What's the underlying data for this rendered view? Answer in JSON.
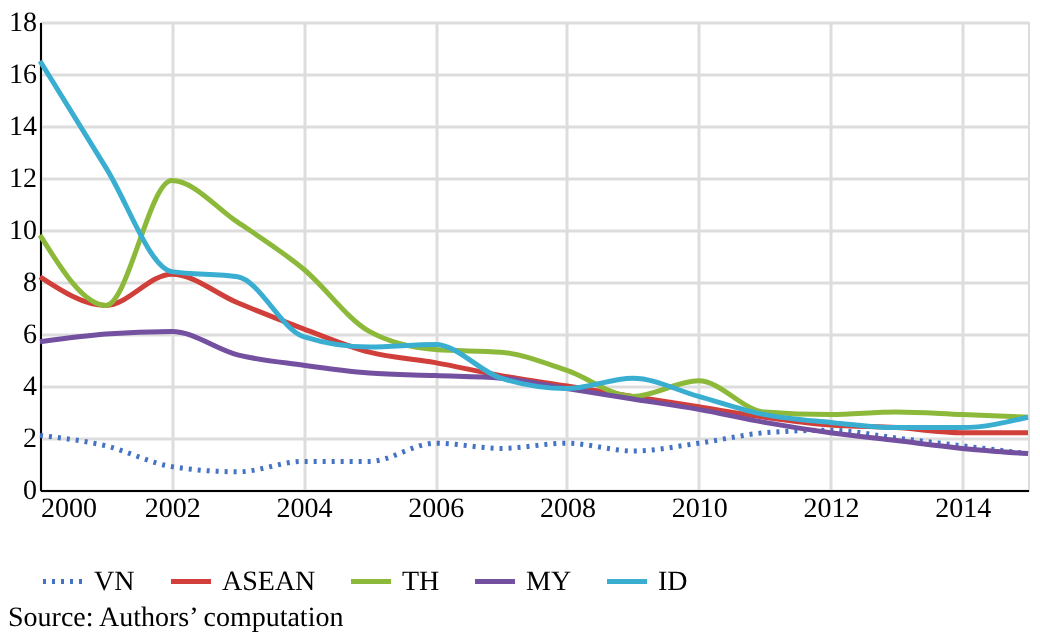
{
  "chart_data": {
    "type": "line",
    "x": [
      2000,
      2001,
      2002,
      2003,
      2004,
      2005,
      2006,
      2007,
      2008,
      2009,
      2010,
      2011,
      2012,
      2013,
      2014,
      2015
    ],
    "series": [
      {
        "name": "VN",
        "color": "#4472c4",
        "line_style": "dotted",
        "values": [
          2.1,
          1.7,
          0.9,
          0.7,
          1.1,
          1.1,
          1.8,
          1.6,
          1.8,
          1.5,
          1.8,
          2.2,
          2.3,
          2.0,
          1.7,
          1.4
        ]
      },
      {
        "name": "ASEAN",
        "color": "#d13f3a",
        "line_style": "solid",
        "values": [
          8.2,
          7.1,
          8.3,
          7.2,
          6.2,
          5.3,
          4.9,
          4.4,
          4.0,
          3.6,
          3.2,
          2.8,
          2.5,
          2.4,
          2.2,
          2.2
        ]
      },
      {
        "name": "TH",
        "color": "#8db93a",
        "line_style": "solid",
        "values": [
          9.8,
          7.1,
          11.9,
          10.3,
          8.5,
          6.1,
          5.4,
          5.3,
          4.6,
          3.6,
          4.2,
          3.0,
          2.9,
          3.0,
          2.9,
          2.8
        ]
      },
      {
        "name": "MY",
        "color": "#7450a0",
        "line_style": "solid",
        "values": [
          5.7,
          6.0,
          6.1,
          5.2,
          4.8,
          4.5,
          4.4,
          4.3,
          3.9,
          3.5,
          3.1,
          2.6,
          2.2,
          1.9,
          1.6,
          1.4
        ]
      },
      {
        "name": "ID",
        "color": "#3aaed0",
        "line_style": "solid",
        "values": [
          16.5,
          12.4,
          8.4,
          8.2,
          5.9,
          5.5,
          5.6,
          4.3,
          3.9,
          4.3,
          3.6,
          2.9,
          2.6,
          2.4,
          2.4,
          2.8
        ]
      }
    ],
    "xlim": [
      2000,
      2015
    ],
    "xticks": [
      2000,
      2002,
      2004,
      2006,
      2008,
      2010,
      2012,
      2014
    ],
    "ylim": [
      0,
      18
    ],
    "yticks": [
      0,
      2,
      4,
      6,
      8,
      10,
      12,
      14,
      16,
      18
    ],
    "grid": true,
    "legend": "bottom",
    "marker": "none",
    "annotations": [
      "Source: Authors’ computation"
    ]
  }
}
